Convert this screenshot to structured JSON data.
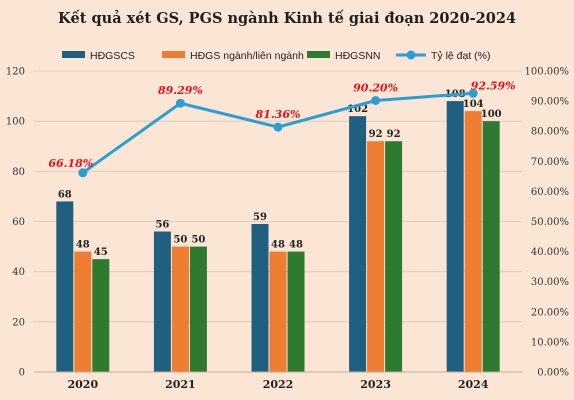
{
  "chart_data": {
    "type": "bar",
    "title": "Kết quả xét GS, PGS ngành Kinh tế giai đoạn 2020-2024",
    "categories": [
      "2020",
      "2021",
      "2022",
      "2023",
      "2024"
    ],
    "series": [
      {
        "name": "HĐGSCS",
        "values": [
          68,
          56,
          59,
          102,
          108
        ],
        "color": "#1f5f80"
      },
      {
        "name": "HĐGS ngành/liên ngành",
        "values": [
          48,
          50,
          48,
          92,
          104
        ],
        "color": "#ed7d31"
      },
      {
        "name": "HĐGSNN",
        "values": [
          45,
          50,
          48,
          92,
          100
        ],
        "color": "#2e7a2e"
      }
    ],
    "line_series": {
      "name": "Tỷ lệ đạt (%)",
      "values": [
        66.18,
        89.29,
        81.36,
        90.2,
        92.59
      ],
      "labels": [
        "66.18%",
        "89.29%",
        "81.36%",
        "90.20%",
        "92.59%"
      ],
      "color": "#2a9fd6",
      "axis": "right"
    },
    "ylim": [
      0,
      120
    ],
    "y_ticks": [
      "0",
      "20",
      "40",
      "60",
      "80",
      "100",
      "120"
    ],
    "y2lim": [
      0,
      100
    ],
    "y2_ticks": [
      "0.00%",
      "10.00%",
      "20.00%",
      "30.00%",
      "40.00%",
      "50.00%",
      "60.00%",
      "70.00%",
      "80.00%",
      "90.00%",
      "100.00%"
    ],
    "grid": true,
    "legend_position": "top"
  }
}
